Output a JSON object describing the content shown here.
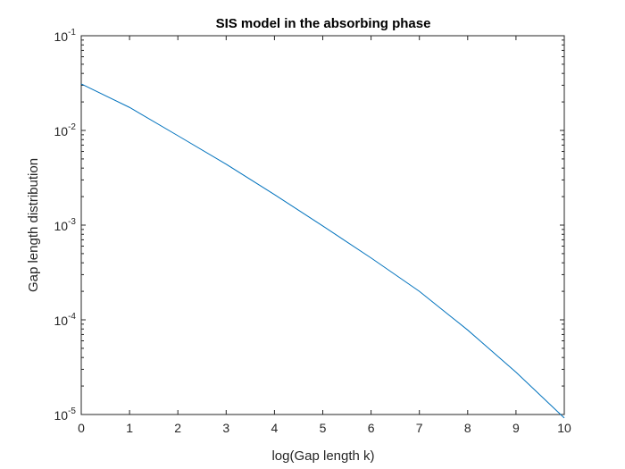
{
  "chart_data": {
    "type": "line",
    "title": "SIS model in the absorbing phase",
    "xlabel": "log(Gap length k)",
    "ylabel": "Gap length distribution",
    "xlim": [
      0,
      10
    ],
    "ylim": [
      1e-05,
      0.1
    ],
    "yscale": "log",
    "xticks": [
      "0",
      "1",
      "2",
      "3",
      "4",
      "5",
      "6",
      "7",
      "8",
      "9",
      "10"
    ],
    "yticks": [
      {
        "base": "10",
        "exp": "-5",
        "value": 1e-05
      },
      {
        "base": "10",
        "exp": "-4",
        "value": 0.0001
      },
      {
        "base": "10",
        "exp": "-3",
        "value": 0.001
      },
      {
        "base": "10",
        "exp": "-2",
        "value": 0.01
      },
      {
        "base": "10",
        "exp": "-1",
        "value": 0.1
      }
    ],
    "grid": false,
    "color": "#0072bd",
    "series": [
      {
        "x": [
          0,
          1,
          2,
          3,
          4,
          5,
          6,
          7,
          8,
          9,
          10
        ],
        "values": [
          0.031,
          0.0175,
          0.0088,
          0.0044,
          0.0021,
          0.00098,
          0.00045,
          0.0002,
          7.8e-05,
          2.8e-05,
          9.2e-06
        ]
      }
    ]
  }
}
